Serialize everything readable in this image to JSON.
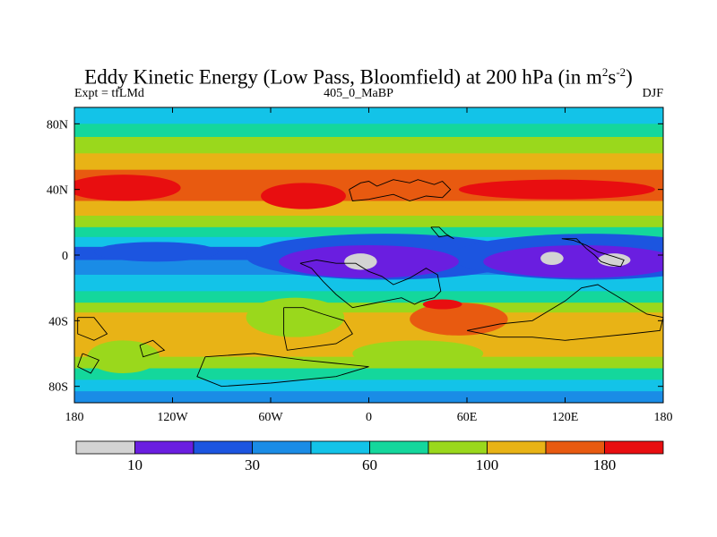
{
  "chart_data": {
    "type": "heatmap",
    "title": {
      "text": "Eddy Kinetic Energy (Low Pass, Bloomfield) at 200 hPa (in m",
      "sup1": "2",
      "mid": "s",
      "sup2": "-2",
      "end": ")"
    },
    "left_label": "Expt = tfLMd",
    "center_label": "405_0_MaBP",
    "right_label": "DJF",
    "xlim": [
      -180,
      180
    ],
    "ylim": [
      -90,
      90
    ],
    "x_ticks": [
      {
        "value": -180,
        "label": "180"
      },
      {
        "value": -120,
        "label": "120W"
      },
      {
        "value": -60,
        "label": "60W"
      },
      {
        "value": 0,
        "label": "0"
      },
      {
        "value": 60,
        "label": "60E"
      },
      {
        "value": 120,
        "label": "120E"
      },
      {
        "value": 180,
        "label": "180"
      }
    ],
    "y_ticks": [
      {
        "value": 80,
        "label": "80N"
      },
      {
        "value": 40,
        "label": "40N"
      },
      {
        "value": 0,
        "label": "0"
      },
      {
        "value": -40,
        "label": "40S"
      },
      {
        "value": -80,
        "label": "80S"
      }
    ],
    "colorbar": {
      "colors": [
        "#d3d3d3",
        "#6a1ee0",
        "#1c55e0",
        "#1a8ce6",
        "#13c3e8",
        "#14d79c",
        "#9ad81c",
        "#e8b316",
        "#e85a10",
        "#e80e10"
      ],
      "levels": [
        10,
        20,
        30,
        45,
        60,
        80,
        100,
        140,
        180
      ],
      "labels": [
        {
          "level_index": 0,
          "text": "10"
        },
        {
          "level_index": 2,
          "text": "30"
        },
        {
          "level_index": 4,
          "text": "60"
        },
        {
          "level_index": 6,
          "text": "100"
        },
        {
          "level_index": 8,
          "text": "180"
        }
      ]
    },
    "bands": [
      {
        "from": 90,
        "to": 80,
        "level": 4
      },
      {
        "from": 80,
        "to": 72,
        "level": 5
      },
      {
        "from": 72,
        "to": 62,
        "level": 6
      },
      {
        "from": 62,
        "to": 52,
        "level": 7
      },
      {
        "from": 52,
        "to": 33,
        "level": 8
      },
      {
        "from": 33,
        "to": 24,
        "level": 7
      },
      {
        "from": 24,
        "to": 17,
        "level": 6
      },
      {
        "from": 17,
        "to": 11,
        "level": 5
      },
      {
        "from": 11,
        "to": 5,
        "level": 4
      },
      {
        "from": 5,
        "to": -3,
        "level": 2
      },
      {
        "from": -3,
        "to": -12,
        "level": 3
      },
      {
        "from": -12,
        "to": -22,
        "level": 4
      },
      {
        "from": -22,
        "to": -29,
        "level": 5
      },
      {
        "from": -29,
        "to": -35,
        "level": 6
      },
      {
        "from": -35,
        "to": -62,
        "level": 7
      },
      {
        "from": -62,
        "to": -69,
        "level": 6
      },
      {
        "from": -69,
        "to": -76,
        "level": 5
      },
      {
        "from": -76,
        "to": -83,
        "level": 4
      },
      {
        "from": -83,
        "to": -90,
        "level": 3
      }
    ],
    "blobs": [
      {
        "lon": -150,
        "lat": 41,
        "rlon": 35,
        "rlat": 8,
        "level": 9
      },
      {
        "lon": -40,
        "lat": 36,
        "rlon": 26,
        "rlat": 8,
        "level": 9
      },
      {
        "lon": 115,
        "lat": 40,
        "rlon": 60,
        "rlat": 6,
        "level": 9
      },
      {
        "lon": 10,
        "lat": -1,
        "rlon": 85,
        "rlat": 14,
        "level": 2
      },
      {
        "lon": 135,
        "lat": -1,
        "rlon": 85,
        "rlat": 14,
        "level": 2
      },
      {
        "lon": -130,
        "lat": 2,
        "rlon": 38,
        "rlat": 6,
        "level": 2
      },
      {
        "lon": 0,
        "lat": -4,
        "rlon": 55,
        "rlat": 10,
        "level": 1
      },
      {
        "lon": 130,
        "lat": -4,
        "rlon": 60,
        "rlat": 10,
        "level": 1
      },
      {
        "lon": -5,
        "lat": -4,
        "rlon": 10,
        "rlat": 5,
        "level": 0
      },
      {
        "lon": 112,
        "lat": -2,
        "rlon": 7,
        "rlat": 4,
        "level": 0
      },
      {
        "lon": 150,
        "lat": -3,
        "rlon": 10,
        "rlat": 4,
        "level": 0
      },
      {
        "lon": -45,
        "lat": -38,
        "rlon": 30,
        "rlat": 12,
        "level": 6
      },
      {
        "lon": 55,
        "lat": -39,
        "rlon": 30,
        "rlat": 10,
        "level": 8
      },
      {
        "lon": 45,
        "lat": -30,
        "rlon": 12,
        "rlat": 3,
        "level": 9
      },
      {
        "lon": -150,
        "lat": -62,
        "rlon": 22,
        "rlat": 10,
        "level": 6
      },
      {
        "lon": 30,
        "lat": -60,
        "rlon": 40,
        "rlat": 8,
        "level": 6
      }
    ],
    "coastlines": [
      [
        [
          -12,
          40
        ],
        [
          -5,
          44
        ],
        [
          0,
          45
        ],
        [
          5,
          42
        ],
        [
          15,
          46
        ],
        [
          25,
          44
        ],
        [
          30,
          46
        ],
        [
          40,
          43
        ],
        [
          45,
          45
        ],
        [
          50,
          40
        ],
        [
          45,
          35
        ],
        [
          35,
          36
        ],
        [
          25,
          33
        ],
        [
          15,
          37
        ],
        [
          5,
          35
        ],
        [
          0,
          34
        ],
        [
          -10,
          33
        ],
        [
          -12,
          40
        ]
      ],
      [
        [
          38,
          17
        ],
        [
          43,
          17
        ],
        [
          47,
          13
        ],
        [
          52,
          10
        ],
        [
          48,
          12
        ],
        [
          43,
          11
        ],
        [
          38,
          17
        ]
      ],
      [
        [
          118,
          10
        ],
        [
          127,
          10
        ],
        [
          133,
          4
        ],
        [
          138,
          0
        ],
        [
          142,
          -4
        ],
        [
          148,
          -6
        ],
        [
          154,
          -7
        ],
        [
          156,
          -3
        ],
        [
          150,
          -1
        ],
        [
          140,
          2
        ],
        [
          133,
          6
        ],
        [
          125,
          9
        ],
        [
          118,
          10
        ]
      ],
      [
        [
          -42,
          -5
        ],
        [
          -35,
          -8
        ],
        [
          -28,
          -16
        ],
        [
          -20,
          -24
        ],
        [
          -10,
          -32
        ],
        [
          0,
          -30
        ],
        [
          10,
          -28
        ],
        [
          20,
          -26
        ],
        [
          28,
          -30
        ],
        [
          32,
          -28
        ],
        [
          40,
          -26
        ],
        [
          44,
          -22
        ],
        [
          42,
          -12
        ],
        [
          35,
          -8
        ],
        [
          25,
          -14
        ],
        [
          15,
          -18
        ],
        [
          8,
          -13
        ],
        [
          0,
          -10
        ],
        [
          -8,
          -5
        ],
        [
          -20,
          -5
        ],
        [
          -32,
          -3
        ],
        [
          -42,
          -5
        ]
      ],
      [
        [
          -52,
          -32
        ],
        [
          -40,
          -32
        ],
        [
          -28,
          -36
        ],
        [
          -15,
          -40
        ],
        [
          -10,
          -48
        ],
        [
          -20,
          -54
        ],
        [
          -35,
          -56
        ],
        [
          -50,
          -58
        ],
        [
          -52,
          -48
        ],
        [
          -52,
          -32
        ]
      ],
      [
        [
          60,
          -46
        ],
        [
          80,
          -42
        ],
        [
          100,
          -40
        ],
        [
          110,
          -34
        ],
        [
          120,
          -28
        ],
        [
          130,
          -20
        ],
        [
          140,
          -18
        ],
        [
          150,
          -24
        ],
        [
          160,
          -30
        ],
        [
          170,
          -36
        ],
        [
          180,
          -38
        ],
        [
          178,
          -46
        ],
        [
          160,
          -48
        ],
        [
          140,
          -50
        ],
        [
          120,
          -52
        ],
        [
          100,
          -50
        ],
        [
          80,
          -50
        ],
        [
          60,
          -46
        ]
      ],
      [
        [
          -178,
          -38
        ],
        [
          -168,
          -38
        ],
        [
          -160,
          -48
        ],
        [
          -168,
          -52
        ],
        [
          -178,
          -48
        ],
        [
          -178,
          -38
        ]
      ],
      [
        [
          -140,
          -55
        ],
        [
          -132,
          -52
        ],
        [
          -125,
          -58
        ],
        [
          -138,
          -62
        ],
        [
          -140,
          -55
        ]
      ],
      [
        [
          -100,
          -62
        ],
        [
          -70,
          -60
        ],
        [
          -40,
          -64
        ],
        [
          -20,
          -66
        ],
        [
          0,
          -68
        ],
        [
          -20,
          -74
        ],
        [
          -60,
          -78
        ],
        [
          -90,
          -80
        ],
        [
          -105,
          -74
        ],
        [
          -100,
          -62
        ]
      ],
      [
        [
          -175,
          -60
        ],
        [
          -165,
          -64
        ],
        [
          -170,
          -72
        ],
        [
          -178,
          -68
        ],
        [
          -175,
          -60
        ]
      ]
    ]
  }
}
